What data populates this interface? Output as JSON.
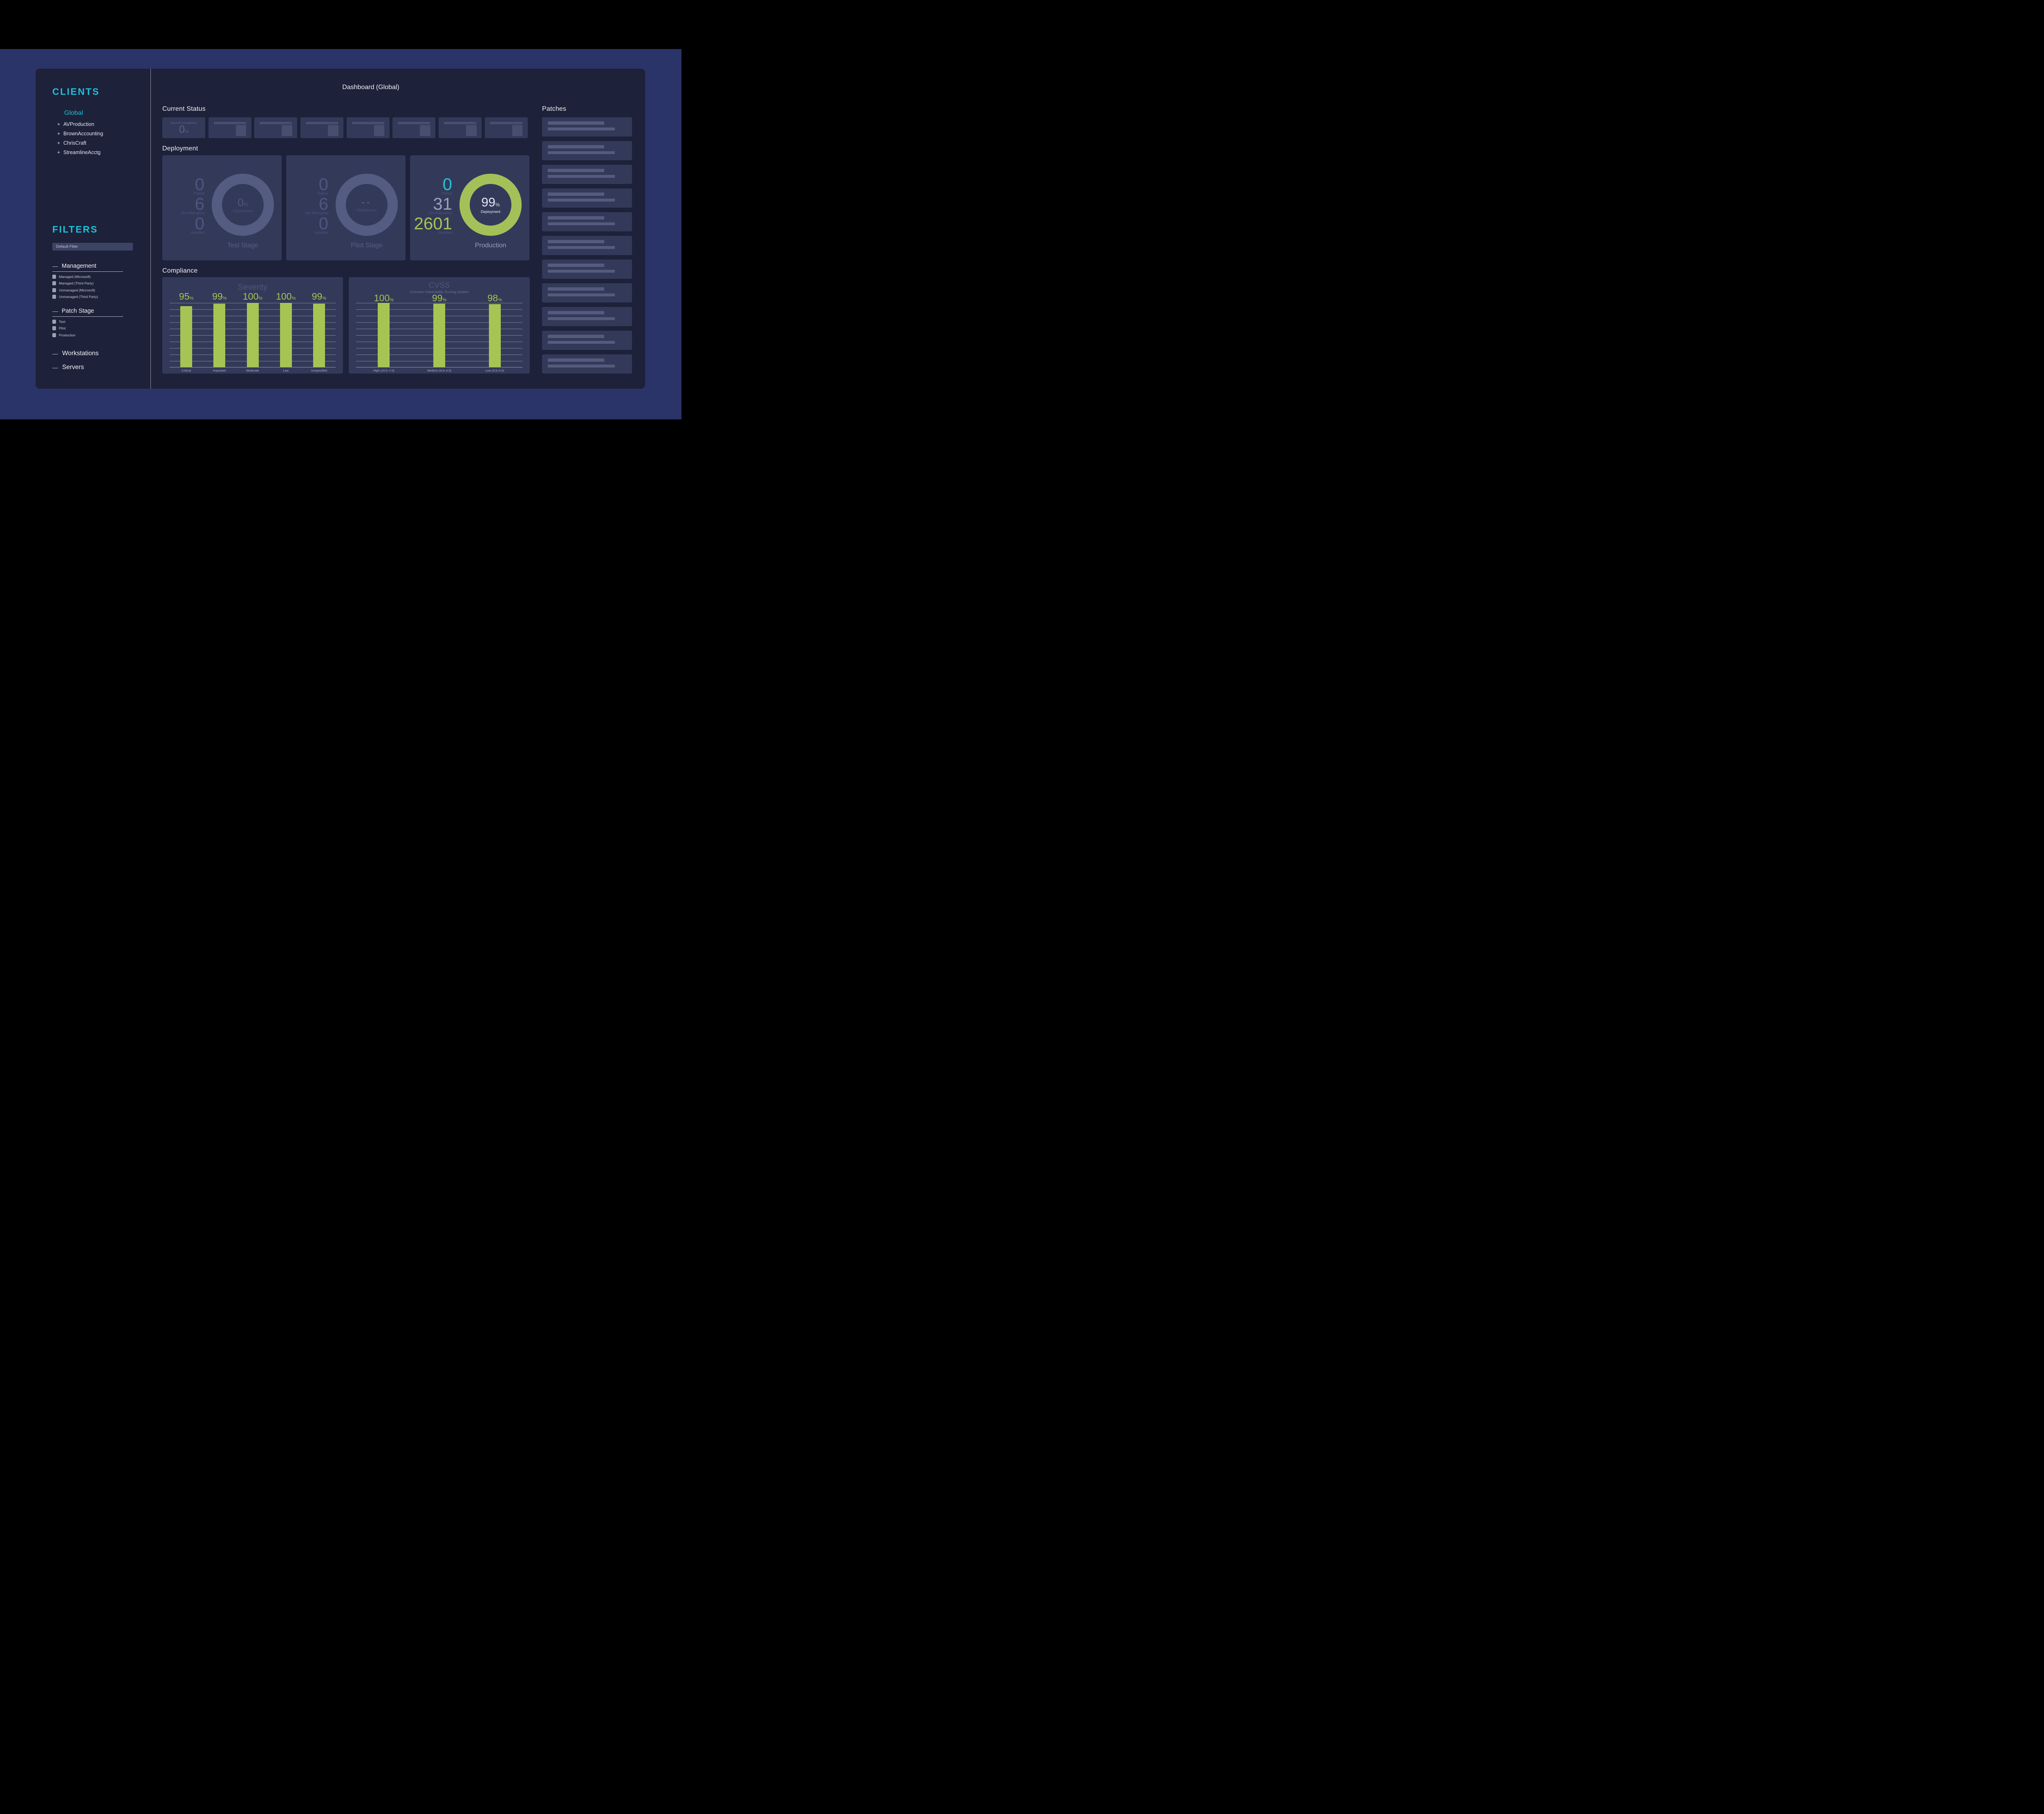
{
  "chrome": {
    "close_label": "✕",
    "traffic_dots": [
      "#d95f2b",
      "#96e8f2",
      "#c6db53"
    ]
  },
  "page_title": "Dashboard (Global)",
  "sidebar": {
    "clients_heading": "CLIENTS",
    "global_label": "Global",
    "clients": [
      "AVProduction",
      "BrownAccounting",
      "ChrisCraft",
      "StreamlineAcctg"
    ],
    "filters_heading": "FILTERS",
    "filter_value": "Default Filter",
    "sections": [
      {
        "label": "Management",
        "items": [
          "Managed (Microsoft)",
          "Managed (Third Party)",
          "Unmanaged (Microsoft)",
          "Unmanaged (Third Party)"
        ]
      },
      {
        "label": "Patch Stage",
        "items": [
          "Test",
          "Pilot",
          "Production"
        ]
      }
    ],
    "groups": [
      {
        "label": "Workstations"
      },
      {
        "label": "Servers"
      }
    ]
  },
  "headings": {
    "current_status": "Current Status",
    "deployment": "Deployment",
    "compliance": "Compliance",
    "patches": "Patches"
  },
  "current_status": {
    "overall": {
      "label": "Overall Compliance",
      "value": "0",
      "unit": "%"
    },
    "placeholder_cards": 7
  },
  "deployment_cards": [
    {
      "title": "Test Stage",
      "state": "inactive",
      "stats": [
        {
          "value": "0",
          "label": "Paired",
          "color": "muted"
        },
        {
          "value": "6",
          "label": "Not Attempted",
          "color": "muted"
        },
        {
          "value": "0",
          "label": "Installed",
          "color": "muted"
        }
      ],
      "center": {
        "value": "0",
        "unit": "%",
        "label": "Deployment"
      }
    },
    {
      "title": "Pilot Stage",
      "state": "inactive",
      "stats": [
        {
          "value": "0",
          "label": "Paired",
          "color": "muted"
        },
        {
          "value": "6",
          "label": "Not Attempted",
          "color": "muted"
        },
        {
          "value": "0",
          "label": "Installed",
          "color": "muted"
        }
      ],
      "center": {
        "value": "--",
        "unit": "",
        "label": "Deployment"
      }
    },
    {
      "title": "Production",
      "state": "active",
      "stats": [
        {
          "value": "0",
          "label": "Paired",
          "color": "cyan"
        },
        {
          "value": "31",
          "label": "Not Attempted",
          "color": "gray"
        },
        {
          "value": "2601",
          "label": "Installed",
          "color": "green"
        }
      ],
      "center": {
        "value": "99",
        "unit": "%",
        "label": "Deployment"
      }
    }
  ],
  "patches": {
    "placeholder_rows": 11
  },
  "chart_data": [
    {
      "type": "bar",
      "title": "Severity",
      "categories": [
        "Critical",
        "Important",
        "Moderate",
        "Low",
        "Unspecified"
      ],
      "values": [
        95,
        99,
        100,
        100,
        99
      ],
      "unit": "%",
      "ylim": [
        0,
        100
      ],
      "grid": true,
      "legend": "none",
      "bar_color": "#a6c453"
    },
    {
      "type": "bar",
      "title": "CVSS",
      "subtitle": "Common Vulnerability Scoring System",
      "categories": [
        "High (10.0–7.0)",
        "Medium (9.9–4.0)",
        "Low (3.9–0.0)"
      ],
      "values": [
        100,
        99,
        98
      ],
      "unit": "%",
      "ylim": [
        0,
        100
      ],
      "grid": true,
      "legend": "none",
      "bar_color": "#a6c453"
    }
  ],
  "colors": {
    "accent_cyan": "#1ec1d8",
    "accent_green": "#a6c453",
    "chrome_blue": "#2a3468",
    "window_bg": "#1d2139",
    "card_bg": "#333a59",
    "ring_gray": "#545c82",
    "skeleton": "#545b7d",
    "text_white": "#f2f3f7",
    "text_muted": "#4d5580"
  }
}
